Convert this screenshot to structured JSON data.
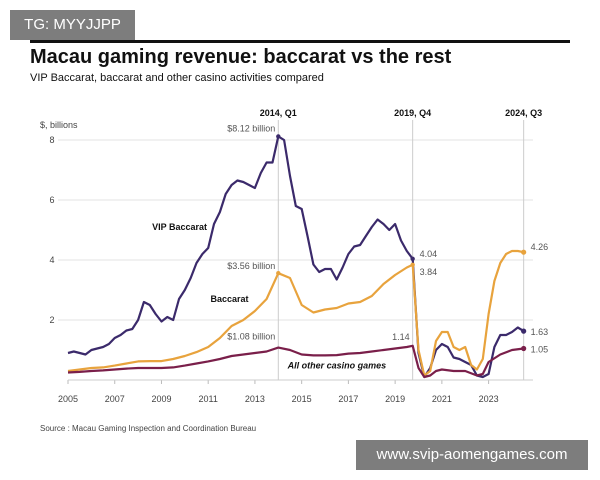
{
  "watermarks": {
    "top_left": "TG: MYYJJPP",
    "bottom_right": "www.svip-aomengames.com"
  },
  "chart_data": {
    "type": "line",
    "title": "Macau gaming revenue: baccarat vs the rest",
    "subtitle": "VIP Baccarat, baccarat and other casino activities compared",
    "ylabel": "$, billions",
    "xlabel": "",
    "ylim": [
      0,
      8.4
    ],
    "xlim": [
      2005.0,
      2024.9
    ],
    "yticks": [
      2,
      4,
      6,
      8
    ],
    "xticks": [
      2005,
      2007,
      2009,
      2011,
      2013,
      2015,
      2017,
      2019,
      2021,
      2023
    ],
    "grid": true,
    "markers": [
      {
        "x": 2014.0,
        "label": "2014, Q1"
      },
      {
        "x": 2019.75,
        "label": "2019, Q4"
      },
      {
        "x": 2024.5,
        "label": "2024, Q3"
      }
    ],
    "series": [
      {
        "name": "VIP Baccarat",
        "color": "#3b2a6b",
        "x": [
          2005.0,
          2005.25,
          2005.5,
          2005.75,
          2006.0,
          2006.25,
          2006.5,
          2006.75,
          2007.0,
          2007.25,
          2007.5,
          2007.75,
          2008.0,
          2008.25,
          2008.5,
          2008.75,
          2009.0,
          2009.25,
          2009.5,
          2009.75,
          2010.0,
          2010.25,
          2010.5,
          2010.75,
          2011.0,
          2011.25,
          2011.5,
          2011.75,
          2012.0,
          2012.25,
          2012.5,
          2012.75,
          2013.0,
          2013.25,
          2013.5,
          2013.75,
          2014.0,
          2014.25,
          2014.5,
          2014.75,
          2015.0,
          2015.25,
          2015.5,
          2015.75,
          2016.0,
          2016.25,
          2016.5,
          2016.75,
          2017.0,
          2017.25,
          2017.5,
          2017.75,
          2018.0,
          2018.25,
          2018.5,
          2018.75,
          2019.0,
          2019.25,
          2019.5,
          2019.75,
          2020.0,
          2020.25,
          2020.5,
          2020.75,
          2021.0,
          2021.25,
          2021.5,
          2021.75,
          2022.0,
          2022.25,
          2022.5,
          2022.75,
          2023.0,
          2023.25,
          2023.5,
          2023.75,
          2024.0,
          2024.25,
          2024.5
        ],
        "values": [
          0.9,
          0.95,
          0.9,
          0.85,
          1.0,
          1.05,
          1.1,
          1.2,
          1.4,
          1.5,
          1.65,
          1.7,
          2.0,
          2.6,
          2.5,
          2.2,
          1.95,
          2.1,
          2.0,
          2.7,
          3.0,
          3.4,
          3.9,
          4.2,
          4.4,
          5.2,
          5.6,
          6.2,
          6.5,
          6.65,
          6.6,
          6.5,
          6.4,
          6.9,
          7.25,
          7.25,
          8.12,
          8.0,
          6.8,
          5.8,
          5.7,
          4.8,
          3.85,
          3.6,
          3.7,
          3.7,
          3.35,
          3.75,
          4.2,
          4.45,
          4.5,
          4.8,
          5.1,
          5.35,
          5.2,
          5.0,
          5.2,
          4.65,
          4.3,
          4.04,
          0.9,
          0.1,
          0.4,
          1.0,
          1.2,
          1.1,
          0.75,
          0.7,
          0.6,
          0.5,
          0.15,
          0.1,
          0.2,
          1.1,
          1.5,
          1.5,
          1.6,
          1.75,
          1.63
        ]
      },
      {
        "name": "Baccarat",
        "color": "#e8a33d",
        "x": [
          2005.0,
          2005.5,
          2006.0,
          2006.5,
          2007.0,
          2007.5,
          2008.0,
          2008.5,
          2009.0,
          2009.5,
          2010.0,
          2010.5,
          2011.0,
          2011.5,
          2012.0,
          2012.5,
          2013.0,
          2013.5,
          2014.0,
          2014.5,
          2015.0,
          2015.5,
          2016.0,
          2016.5,
          2017.0,
          2017.5,
          2018.0,
          2018.5,
          2019.0,
          2019.5,
          2019.75,
          2020.0,
          2020.25,
          2020.5,
          2020.75,
          2021.0,
          2021.25,
          2021.5,
          2021.75,
          2022.0,
          2022.25,
          2022.5,
          2022.75,
          2023.0,
          2023.25,
          2023.5,
          2023.75,
          2024.0,
          2024.25,
          2024.5
        ],
        "values": [
          0.3,
          0.35,
          0.4,
          0.42,
          0.48,
          0.55,
          0.62,
          0.63,
          0.63,
          0.7,
          0.8,
          0.93,
          1.1,
          1.4,
          1.8,
          2.0,
          2.3,
          2.7,
          3.56,
          3.4,
          2.5,
          2.25,
          2.35,
          2.4,
          2.55,
          2.6,
          2.8,
          3.2,
          3.5,
          3.75,
          3.84,
          1.0,
          0.15,
          0.3,
          1.3,
          1.6,
          1.6,
          1.1,
          1.0,
          1.1,
          0.5,
          0.35,
          0.7,
          2.2,
          3.3,
          3.9,
          4.2,
          4.3,
          4.3,
          4.26
        ]
      },
      {
        "name": "All other casino games",
        "color": "#7a1f4a",
        "x": [
          2005.0,
          2005.5,
          2006.0,
          2006.5,
          2007.0,
          2007.5,
          2008.0,
          2008.5,
          2009.0,
          2009.5,
          2010.0,
          2010.5,
          2011.0,
          2011.5,
          2012.0,
          2012.5,
          2013.0,
          2013.5,
          2014.0,
          2014.5,
          2015.0,
          2015.5,
          2016.0,
          2016.5,
          2017.0,
          2017.5,
          2018.0,
          2018.5,
          2019.0,
          2019.5,
          2019.75,
          2020.0,
          2020.25,
          2020.5,
          2020.75,
          2021.0,
          2021.5,
          2022.0,
          2022.5,
          2022.75,
          2023.0,
          2023.5,
          2024.0,
          2024.5
        ],
        "values": [
          0.25,
          0.27,
          0.3,
          0.32,
          0.35,
          0.38,
          0.4,
          0.4,
          0.4,
          0.42,
          0.48,
          0.55,
          0.62,
          0.7,
          0.8,
          0.85,
          0.9,
          0.95,
          1.08,
          1.0,
          0.85,
          0.82,
          0.82,
          0.83,
          0.88,
          0.9,
          0.95,
          1.0,
          1.05,
          1.1,
          1.14,
          0.4,
          0.1,
          0.15,
          0.3,
          0.35,
          0.3,
          0.3,
          0.15,
          0.2,
          0.6,
          0.85,
          1.0,
          1.05
        ]
      }
    ],
    "annotations": [
      {
        "x": 2014.0,
        "y": 8.12,
        "text": "$8.12 billion"
      },
      {
        "x": 2014.0,
        "y": 3.56,
        "text": "$3.56 billion"
      },
      {
        "x": 2014.0,
        "y": 1.08,
        "text": "$1.08 billion"
      },
      {
        "x": 2019.75,
        "y": 4.04,
        "text": "4.04"
      },
      {
        "x": 2019.75,
        "y": 3.84,
        "text": "3.84"
      },
      {
        "x": 2019.75,
        "y": 1.14,
        "text": "1.14"
      },
      {
        "x": 2024.5,
        "y": 4.26,
        "text": "4.26"
      },
      {
        "x": 2024.5,
        "y": 1.63,
        "text": "1.63"
      },
      {
        "x": 2024.5,
        "y": 1.05,
        "text": "1.05"
      }
    ],
    "source": "Source : Macau Gaming Inspection and Coordination Bureau"
  }
}
